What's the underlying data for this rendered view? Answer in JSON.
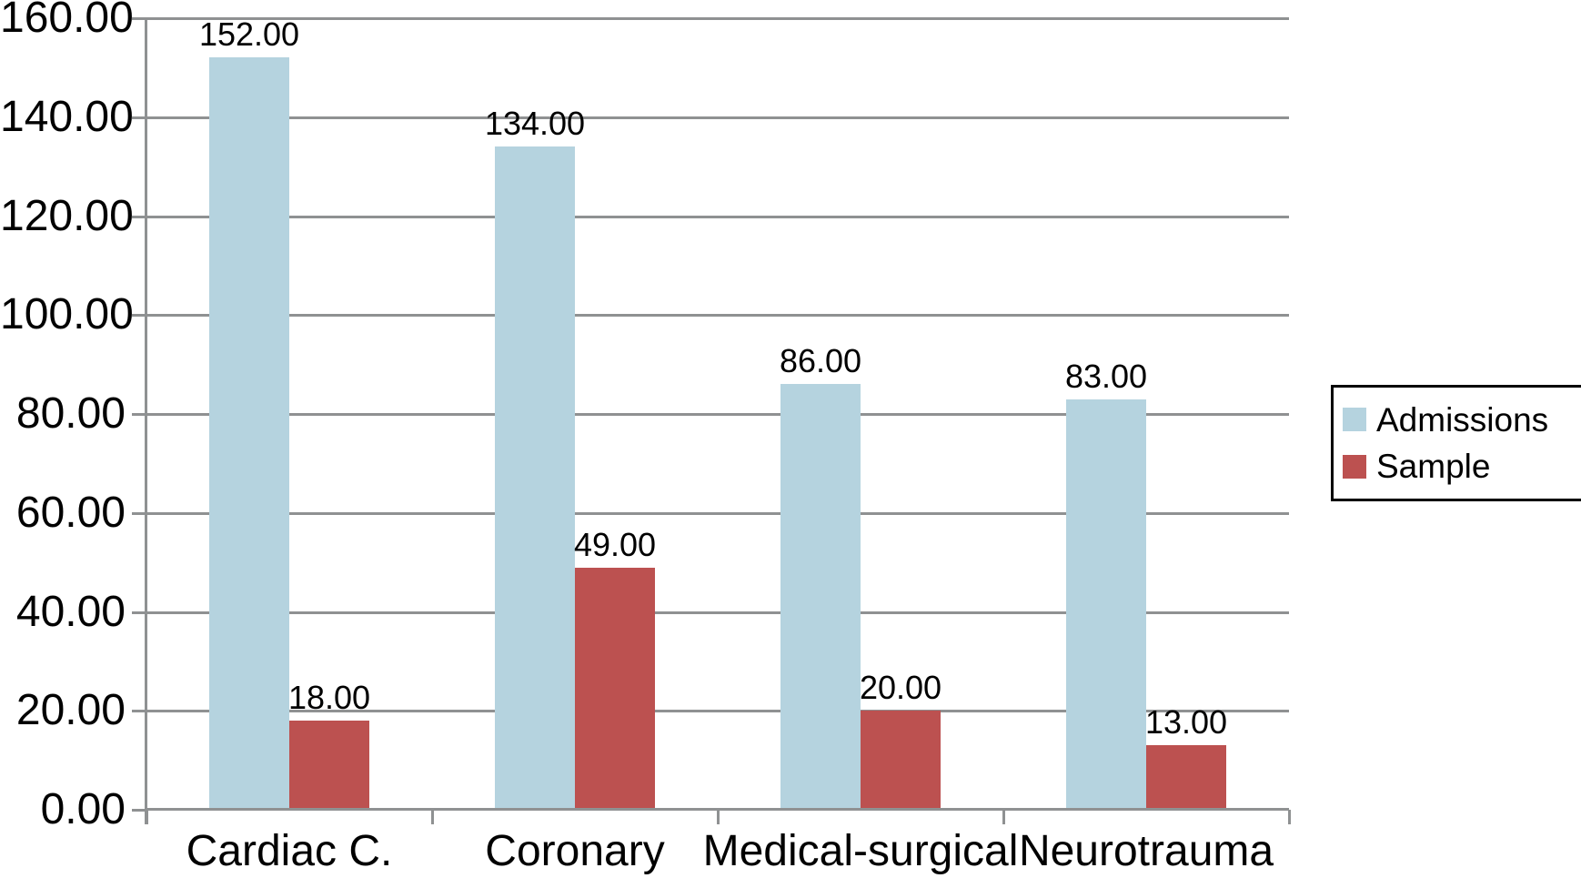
{
  "chart_data": {
    "type": "bar",
    "title": "",
    "xlabel": "",
    "ylabel": "",
    "categories": [
      "Cardiac C.",
      "Coronary",
      "Medical-surgical",
      "Neurotrauma"
    ],
    "series": [
      {
        "name": "Admissions",
        "color": "#b5d3df",
        "values": [
          152,
          134,
          86,
          83
        ],
        "labels": [
          "152.00",
          "134.00",
          "86.00",
          "83.00"
        ]
      },
      {
        "name": "Sample",
        "color": "#bc5150",
        "values": [
          18,
          49,
          20,
          13
        ],
        "labels": [
          "18.00",
          "49.00",
          "20.00",
          "13.00"
        ]
      }
    ],
    "ylim": [
      0,
      160
    ],
    "ytick_step": 20,
    "yticks": [
      "160.00",
      "140.00",
      "120.00",
      "100.00",
      "80.00",
      "60.00",
      "40.00",
      "20.00",
      "0.00"
    ],
    "grid": true,
    "legend_position": "right",
    "colors": {
      "gridline": "#8f9192",
      "axis": "#8f9192",
      "text": "#000000",
      "legend_border": "#000000",
      "background": "#ffffff"
    }
  }
}
